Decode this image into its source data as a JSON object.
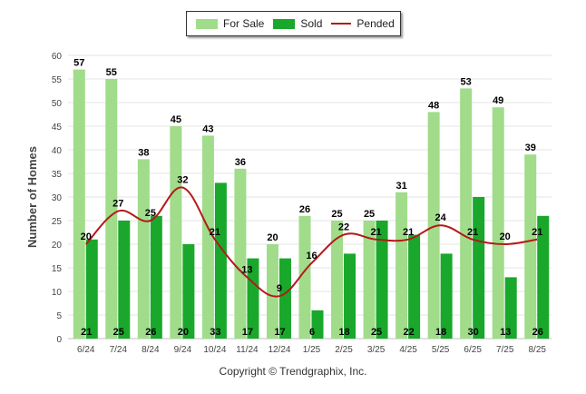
{
  "legend": {
    "for_sale": "For Sale",
    "sold": "Sold",
    "pended": "Pended"
  },
  "copyright": "Copyright © Trendgraphix, Inc.",
  "colors": {
    "for_sale": "#a0dc8a",
    "sold": "#19a82b",
    "pended": "#b21a1a",
    "grid": "#e6e6e6",
    "axis_text": "#444444"
  },
  "chart_data": {
    "type": "bar",
    "ylabel": "Number of Homes",
    "xlabel": "",
    "ylim": [
      0,
      60
    ],
    "yticks": [
      0,
      5,
      10,
      15,
      20,
      25,
      30,
      35,
      40,
      45,
      50,
      55,
      60
    ],
    "categories": [
      "6/24",
      "7/24",
      "8/24",
      "9/24",
      "10/24",
      "11/24",
      "12/24",
      "1/25",
      "2/25",
      "3/25",
      "4/25",
      "5/25",
      "6/25",
      "7/25",
      "8/25"
    ],
    "series": [
      {
        "name": "For Sale",
        "type": "bar",
        "values": [
          57,
          55,
          38,
          45,
          43,
          36,
          20,
          26,
          25,
          25,
          31,
          48,
          53,
          49,
          39
        ]
      },
      {
        "name": "Sold",
        "type": "bar",
        "values": [
          21,
          25,
          26,
          20,
          33,
          17,
          17,
          6,
          18,
          25,
          22,
          18,
          30,
          13,
          26
        ]
      },
      {
        "name": "Pended",
        "type": "line",
        "values": [
          20,
          27,
          25,
          32,
          21,
          13,
          9,
          16,
          22,
          21,
          21,
          24,
          21,
          20,
          21
        ]
      }
    ],
    "grid": true,
    "legend_position": "top-center"
  }
}
